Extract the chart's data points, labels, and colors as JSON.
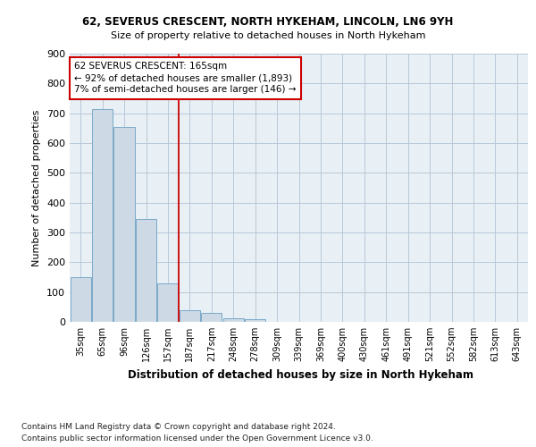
{
  "title1": "62, SEVERUS CRESCENT, NORTH HYKEHAM, LINCOLN, LN6 9YH",
  "title2": "Size of property relative to detached houses in North Hykeham",
  "xlabel": "Distribution of detached houses by size in North Hykeham",
  "ylabel": "Number of detached properties",
  "footnote1": "Contains HM Land Registry data © Crown copyright and database right 2024.",
  "footnote2": "Contains public sector information licensed under the Open Government Licence v3.0.",
  "categories": [
    "35sqm",
    "65sqm",
    "96sqm",
    "126sqm",
    "157sqm",
    "187sqm",
    "217sqm",
    "248sqm",
    "278sqm",
    "309sqm",
    "339sqm",
    "369sqm",
    "400sqm",
    "430sqm",
    "461sqm",
    "491sqm",
    "521sqm",
    "552sqm",
    "582sqm",
    "613sqm",
    "643sqm"
  ],
  "values": [
    150,
    715,
    655,
    345,
    130,
    40,
    30,
    13,
    10,
    0,
    0,
    0,
    0,
    0,
    0,
    0,
    0,
    0,
    0,
    0,
    0
  ],
  "bar_color": "#cdd9e5",
  "bar_edge_color": "#7aaac8",
  "grid_color": "#b8c8d8",
  "background_color": "#e8eff5",
  "ref_line_x": 4.5,
  "ref_line_color": "#cc0000",
  "annotation_line1": "62 SEVERUS CRESCENT: 165sqm",
  "annotation_line2": "← 92% of detached houses are smaller (1,893)",
  "annotation_line3": "7% of semi-detached houses are larger (146) →",
  "annotation_box_color": "#cc0000",
  "ylim": [
    0,
    900
  ],
  "yticks": [
    0,
    100,
    200,
    300,
    400,
    500,
    600,
    700,
    800,
    900
  ]
}
